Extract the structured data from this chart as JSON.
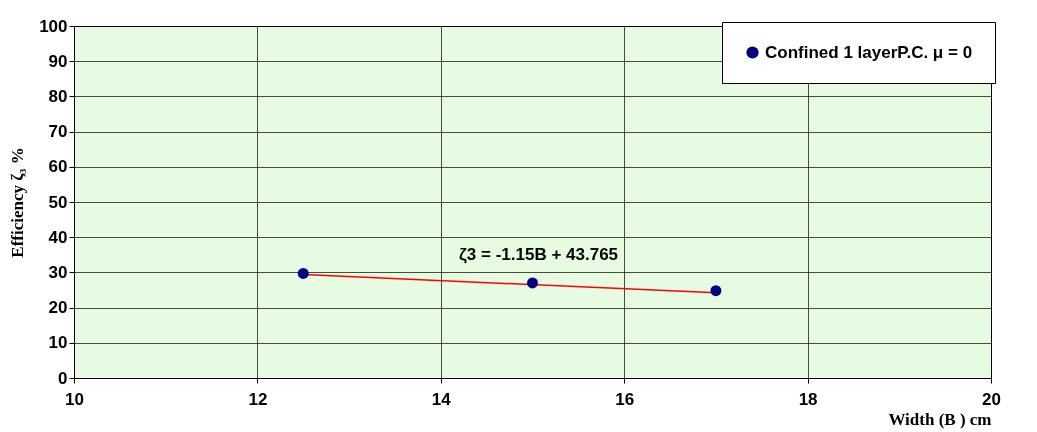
{
  "chart_data": {
    "type": "scatter",
    "xlabel": "Width (B ) cm",
    "ylabel": "Efficiency ζ₃ %",
    "x": [
      12.5,
      15,
      17
    ],
    "series": [
      {
        "name": "Confined 1 layerP.C. μ = 0",
        "color": "#000080",
        "values": [
          29.7,
          27.0,
          24.8
        ],
        "marker": "circle"
      },
      {
        "type": "line",
        "color": "#ff0000",
        "x": [
          12.5,
          17
        ],
        "values": [
          29.4,
          24.2
        ]
      }
    ],
    "annotations": [
      "ζ3  = -1.15B + 43.765"
    ],
    "xlim": [
      10,
      20
    ],
    "xticks": [
      10,
      12,
      14,
      16,
      18,
      20
    ],
    "ylim": [
      0,
      100
    ],
    "yticks": [
      0,
      10,
      20,
      30,
      40,
      50,
      60,
      70,
      80,
      90,
      100
    ],
    "grid": true,
    "legend": "top right"
  }
}
